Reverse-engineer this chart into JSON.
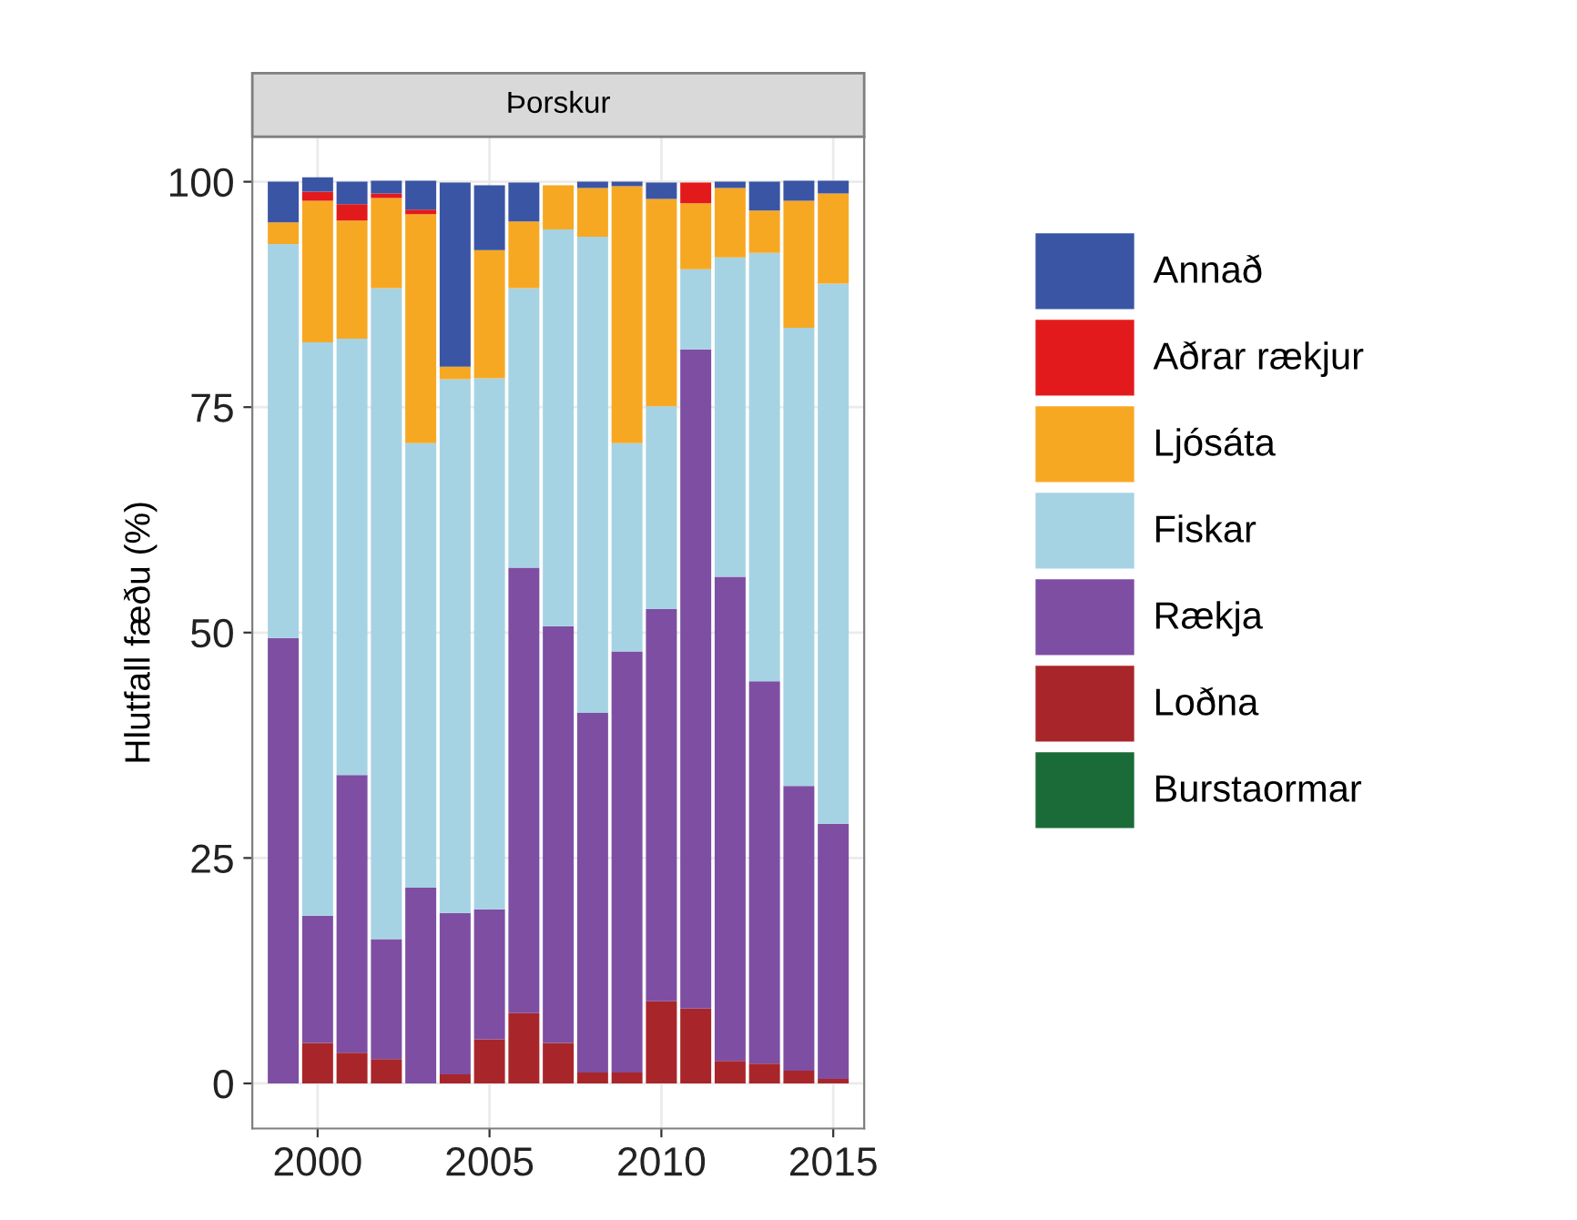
{
  "chart_data": {
    "type": "bar",
    "stacked": true,
    "title": "Þorskur",
    "ylabel": "Hlutfall fæðu (%)",
    "x": [
      1999,
      2000,
      2001,
      2002,
      2003,
      2004,
      2005,
      2006,
      2007,
      2008,
      2009,
      2010,
      2011,
      2012,
      2013,
      2014,
      2015
    ],
    "xlim": [
      1998.1,
      2015.9
    ],
    "xticks": [
      2000,
      2005,
      2010,
      2015
    ],
    "ylim": [
      -5,
      105
    ],
    "yticks": [
      0,
      25,
      50,
      75,
      100
    ],
    "grid": true,
    "legend": "right",
    "series": [
      {
        "name": "Burstaormar",
        "color": "#1a6b38",
        "values": [
          0,
          0,
          0,
          0,
          0,
          0,
          0,
          0,
          0,
          0,
          0,
          0,
          0,
          0,
          0,
          0,
          0
        ]
      },
      {
        "name": "Loðna",
        "color": "#a8262a",
        "values": [
          0,
          4.5,
          3.4,
          2.7,
          0,
          1.0,
          4.9,
          7.8,
          4.5,
          1.2,
          1.2,
          9.1,
          8.3,
          2.5,
          2.2,
          1.4,
          0.5
        ]
      },
      {
        "name": "Rækja",
        "color": "#7e4ea3",
        "values": [
          49.4,
          14.1,
          30.8,
          13.3,
          21.7,
          17.9,
          14.4,
          49.4,
          46.2,
          39.9,
          46.7,
          43.5,
          73.1,
          53.7,
          42.4,
          31.6,
          28.3
        ]
      },
      {
        "name": "Fiskar",
        "color": "#a6d3e3",
        "values": [
          43.7,
          63.6,
          48.4,
          72.2,
          49.3,
          59.2,
          58.9,
          31.0,
          44.0,
          52.8,
          23.1,
          22.5,
          8.9,
          35.4,
          47.5,
          50.8,
          59.9
        ]
      },
      {
        "name": "Ljósáta",
        "color": "#f7a823",
        "values": [
          2.4,
          15.7,
          13.1,
          10.0,
          25.4,
          1.4,
          14.2,
          7.4,
          4.9,
          5.4,
          28.5,
          23.0,
          7.3,
          7.7,
          4.7,
          14.1,
          10.0
        ]
      },
      {
        "name": "Aðrar rækjur",
        "color": "#e31a1c",
        "values": [
          0,
          1.0,
          1.8,
          0.5,
          0.5,
          0,
          0,
          0,
          0,
          0,
          0,
          0,
          2.3,
          0,
          0,
          0,
          0
        ]
      },
      {
        "name": "Annað",
        "color": "#3a55a4",
        "values": [
          4.5,
          1.6,
          2.5,
          1.4,
          3.2,
          20.4,
          7.2,
          4.3,
          0,
          0.7,
          0.5,
          1.8,
          0,
          0.7,
          3.2,
          2.2,
          1.4
        ]
      }
    ]
  }
}
